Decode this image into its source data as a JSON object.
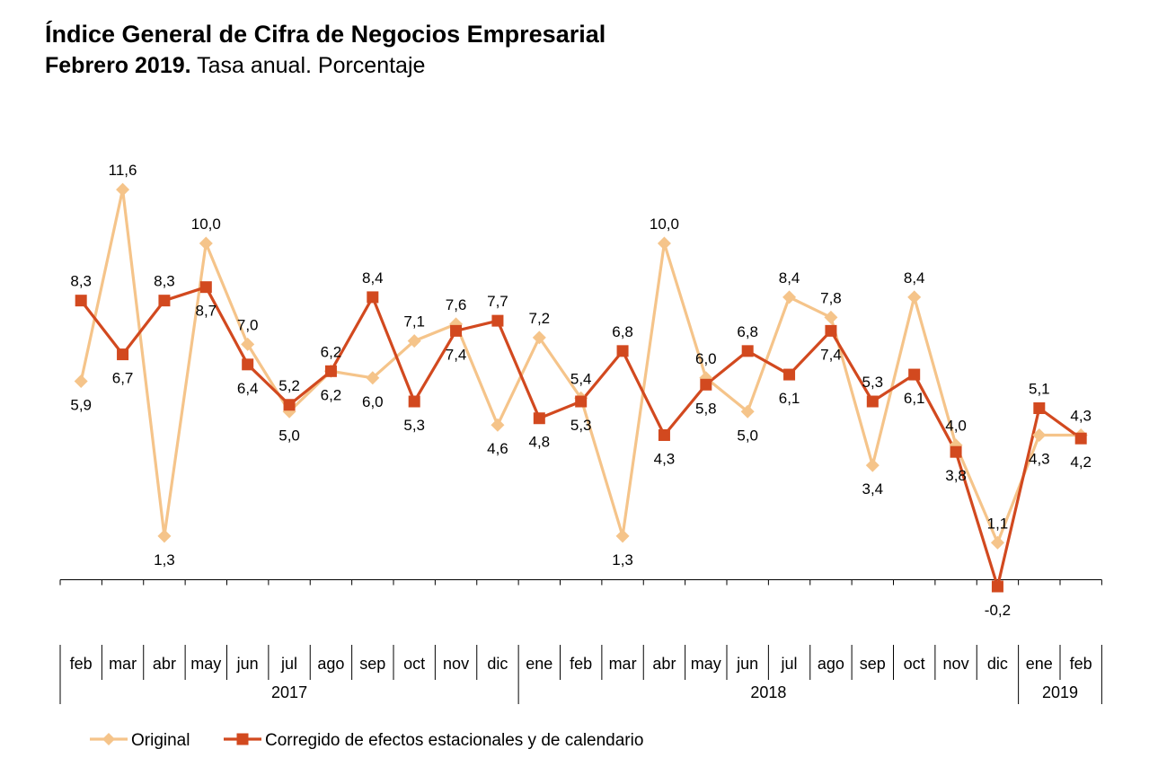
{
  "header": {
    "title": "Índice General de Cifra de Negocios Empresarial",
    "subtitle_bold": "Febrero 2019.",
    "subtitle_rest": " Tasa anual. Porcentaje"
  },
  "colors": {
    "original": "#F5C48A",
    "corrected": "#D2491F",
    "axis": "#000000"
  },
  "chart_data": {
    "type": "line",
    "title": "Índice General de Cifra de Negocios Empresarial",
    "subtitle": "Febrero 2019. Tasa anual. Porcentaje",
    "categories": [
      "feb",
      "mar",
      "abr",
      "may",
      "jun",
      "jul",
      "ago",
      "sep",
      "oct",
      "nov",
      "dic",
      "ene",
      "feb",
      "mar",
      "abr",
      "may",
      "jun",
      "jul",
      "ago",
      "sep",
      "oct",
      "nov",
      "dic",
      "ene",
      "feb"
    ],
    "years": [
      {
        "label": "2017",
        "start": 0,
        "end": 10
      },
      {
        "label": "2018",
        "start": 11,
        "end": 22
      },
      {
        "label": "2019",
        "start": 23,
        "end": 24
      }
    ],
    "series": [
      {
        "name": "Original",
        "marker": "diamond",
        "values": [
          5.9,
          11.6,
          1.3,
          10.0,
          7.0,
          5.0,
          6.2,
          6.0,
          7.1,
          7.6,
          4.6,
          7.2,
          5.4,
          1.3,
          10.0,
          6.0,
          5.0,
          8.4,
          7.8,
          3.4,
          8.4,
          4.0,
          1.1,
          4.3,
          4.3
        ],
        "labels": [
          "5,9",
          "11,6",
          "1,3",
          "10,0",
          "7,0",
          "5,0",
          "6,2",
          "6,0",
          "7,1",
          "7,6",
          "4,6",
          "7,2",
          "5,4",
          "1,3",
          "10,0",
          "6,0",
          "5,0",
          "8,4",
          "7,8",
          "3,4",
          "8,4",
          "4,0",
          "1,1",
          "4,3",
          "4,3"
        ]
      },
      {
        "name": "Corregido de efectos estacionales y de calendario",
        "marker": "square",
        "values": [
          8.3,
          6.7,
          8.3,
          8.7,
          6.4,
          5.2,
          6.2,
          8.4,
          5.3,
          7.4,
          7.7,
          4.8,
          5.3,
          6.8,
          4.3,
          5.8,
          6.8,
          6.1,
          7.4,
          5.3,
          6.1,
          3.8,
          -0.2,
          5.1,
          4.2
        ],
        "labels": [
          "8,3",
          "6,7",
          "8,3",
          "8,7",
          "6,4",
          "5,2",
          "6,2",
          "8,4",
          "5,3",
          "7,4",
          "7,7",
          "4,8",
          "5,3",
          "6,8",
          "4,3",
          "5,8",
          "6,8",
          "6,1",
          "7,4",
          "5,3",
          "6,1",
          "3,8",
          "-0,2",
          "5,1",
          "4,2"
        ]
      }
    ],
    "ylim": [
      -0.2,
      11.6
    ],
    "grid": false,
    "legend": "bottom"
  }
}
